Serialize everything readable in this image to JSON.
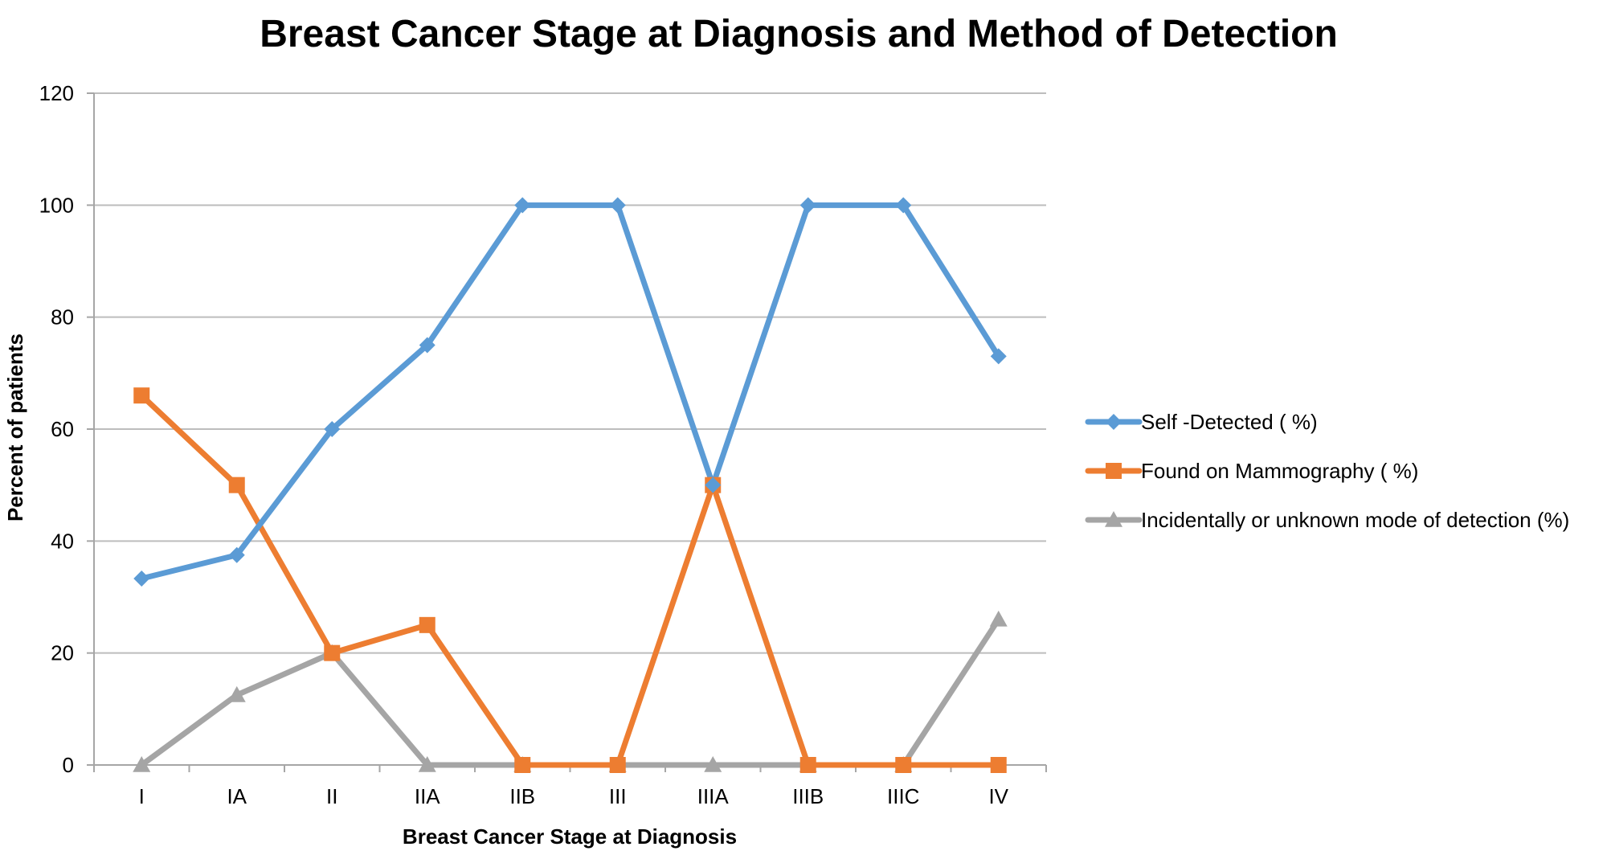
{
  "chart_data": {
    "type": "line",
    "title": "Breast Cancer Stage at Diagnosis and Method of Detection",
    "xlabel": "Breast Cancer Stage at Diagnosis",
    "ylabel": "Percent of patients",
    "categories": [
      "I",
      "IA",
      "II",
      "IIA",
      "IIB",
      "III",
      "IIIA",
      "IIIB",
      "IIIC",
      "IV"
    ],
    "ylim": [
      0,
      120
    ],
    "yticks": [
      0,
      20,
      40,
      60,
      80,
      100,
      120
    ],
    "grid": true,
    "legend_position": "right",
    "series": [
      {
        "name": "Self -Detected ( %)",
        "color": "#5b9bd5",
        "marker": "diamond",
        "values": [
          33.3,
          37.5,
          60,
          75,
          100,
          100,
          50,
          100,
          100,
          73
        ]
      },
      {
        "name": "Found on Mammography ( %)",
        "color": "#ed7d31",
        "marker": "square",
        "values": [
          66,
          50,
          20,
          25,
          0,
          0,
          50,
          0,
          0,
          0
        ]
      },
      {
        "name": "Incidentally or unknown mode of detection (%)",
        "color": "#a5a5a5",
        "marker": "triangle",
        "values": [
          0,
          12.5,
          20,
          0,
          0,
          0,
          0,
          0,
          0,
          26
        ]
      }
    ]
  }
}
